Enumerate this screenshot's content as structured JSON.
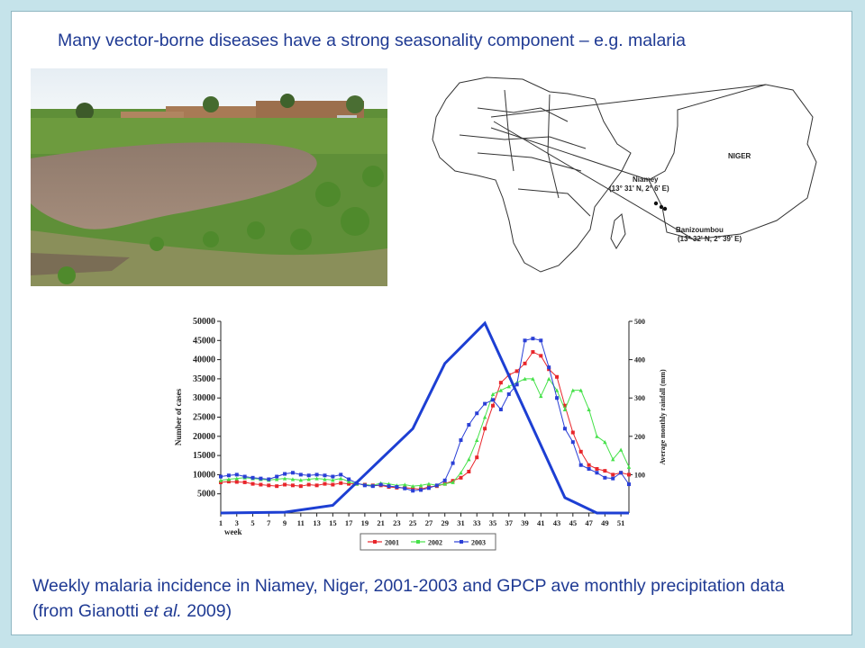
{
  "slide": {
    "title": "Many vector-borne diseases have a strong seasonality component – e.g. malaria",
    "caption_main": "Weekly malaria incidence in Niamey, Niger, 2001-2003 and GPCP ave monthly precipitation data (from Gianotti ",
    "caption_italic": "et al.",
    "caption_end": " 2009)"
  },
  "map": {
    "country_label": "NIGER",
    "city1_name": "Niamey",
    "city1_coords": "(13° 31' N, 2° 6' E)",
    "city2_name": "Banizoumbou",
    "city2_coords": "(13° 32' N, 2° 39' E)"
  },
  "colors": {
    "text_blue": "#1f3a93",
    "series_2001": "#e8262b",
    "series_2002": "#46e14a",
    "series_2003": "#2a3fd6",
    "rainfall": "#1d3fd3"
  },
  "chart_data": {
    "type": "line",
    "ylabel": "Number of cases",
    "y2label": "Average monthly rainfall (mm)",
    "xlabel": "week",
    "ylim": [
      0,
      50000
    ],
    "y2lim": [
      0,
      500
    ],
    "yticks": [
      5000,
      10000,
      15000,
      20000,
      25000,
      30000,
      35000,
      40000,
      45000,
      50000
    ],
    "y2ticks": [
      100,
      200,
      300,
      400,
      500
    ],
    "xlim": [
      1,
      52
    ],
    "xticks": [
      1,
      3,
      5,
      7,
      9,
      11,
      13,
      15,
      17,
      19,
      21,
      23,
      25,
      27,
      29,
      31,
      33,
      35,
      37,
      39,
      41,
      43,
      45,
      47,
      49,
      51
    ],
    "x": [
      1,
      2,
      3,
      4,
      5,
      6,
      7,
      8,
      9,
      10,
      11,
      12,
      13,
      14,
      15,
      16,
      17,
      18,
      19,
      20,
      21,
      22,
      23,
      24,
      25,
      26,
      27,
      28,
      29,
      30,
      31,
      32,
      33,
      34,
      35,
      36,
      37,
      38,
      39,
      40,
      41,
      42,
      43,
      44,
      45,
      46,
      47,
      48,
      49,
      50,
      51,
      52
    ],
    "series": [
      {
        "name": "2001",
        "values": [
          8000,
          8200,
          8100,
          8000,
          7600,
          7400,
          7200,
          7000,
          7400,
          7200,
          7000,
          7400,
          7200,
          7600,
          7400,
          7800,
          7600,
          7600,
          7400,
          7200,
          7200,
          6800,
          6600,
          6600,
          6400,
          6200,
          6800,
          7000,
          7600,
          8400,
          9200,
          10800,
          14500,
          22000,
          28000,
          34000,
          36000,
          37000,
          39000,
          42000,
          41000,
          37500,
          35500,
          28000,
          21000,
          16000,
          12500,
          11500,
          11000,
          10000,
          10500,
          10000
        ]
      },
      {
        "name": "2002",
        "values": [
          8500,
          8800,
          9000,
          9200,
          9000,
          8800,
          8600,
          8800,
          9000,
          8800,
          8600,
          8800,
          9000,
          8800,
          8600,
          9000,
          8200,
          7600,
          7400,
          7200,
          7800,
          7600,
          7200,
          7400,
          7000,
          7200,
          7600,
          7200,
          7600,
          8000,
          10500,
          14000,
          19000,
          25000,
          31000,
          32000,
          33000,
          34000,
          35000,
          35000,
          30500,
          35000,
          32000,
          27000,
          32000,
          32000,
          27000,
          20000,
          18500,
          14000,
          16500,
          12000
        ]
      },
      {
        "name": "2003",
        "values": [
          9500,
          9800,
          10000,
          9500,
          9200,
          9000,
          8800,
          9500,
          10200,
          10500,
          10000,
          9800,
          10000,
          9800,
          9500,
          10000,
          8800,
          7800,
          7200,
          7000,
          7400,
          7000,
          6800,
          6400,
          5800,
          6000,
          6500,
          7200,
          8500,
          13000,
          19000,
          23000,
          26000,
          28500,
          29500,
          27000,
          31000,
          33500,
          45000,
          45500,
          45000,
          38000,
          30000,
          22000,
          18500,
          12500,
          11500,
          10500,
          9200,
          9000,
          10500,
          7500
        ]
      },
      {
        "name": "rainfall",
        "x": [
          1,
          9,
          15,
          19,
          25,
          29,
          34,
          44,
          48,
          52
        ],
        "values": [
          0,
          2,
          20,
          100,
          220,
          390,
          495,
          40,
          0,
          0
        ]
      }
    ]
  }
}
